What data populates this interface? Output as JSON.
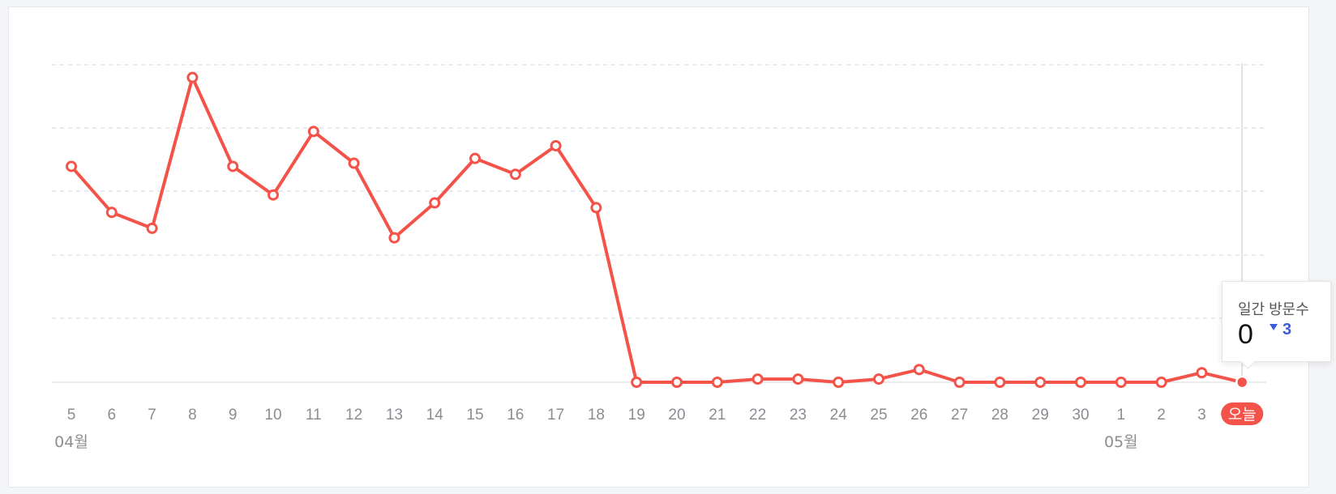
{
  "chart_data": {
    "type": "line",
    "title": "",
    "xlabel": "",
    "ylabel": "",
    "categories": [
      "5",
      "6",
      "7",
      "8",
      "9",
      "10",
      "11",
      "12",
      "13",
      "14",
      "15",
      "16",
      "17",
      "18",
      "19",
      "20",
      "21",
      "22",
      "23",
      "24",
      "25",
      "26",
      "27",
      "28",
      "29",
      "30",
      "1",
      "2",
      "3",
      "오늘"
    ],
    "month_labels": [
      {
        "index": 0,
        "label": "04월"
      },
      {
        "index": 26,
        "label": "05월"
      }
    ],
    "series": [
      {
        "values": [
          68,
          53.5,
          48.5,
          96,
          68,
          59,
          79,
          69,
          45.5,
          56.5,
          70.5,
          65.5,
          74.5,
          55,
          0,
          0,
          0,
          1,
          1,
          0,
          1,
          4,
          0,
          0,
          0,
          0,
          0,
          0,
          3,
          0
        ],
        "color": "#f4534a"
      }
    ],
    "ylim": [
      0,
      100
    ],
    "grid": true,
    "highlight": {
      "index": 29,
      "label": "오늘"
    }
  },
  "tooltip": {
    "title": "일간 방문수",
    "value": "0",
    "delta": "3",
    "delta_direction": "down"
  },
  "colors": {
    "line": "#f4534a",
    "grid": "#e2e4e7",
    "axis_text": "#8a8d92",
    "delta": "#3b5bdb"
  }
}
